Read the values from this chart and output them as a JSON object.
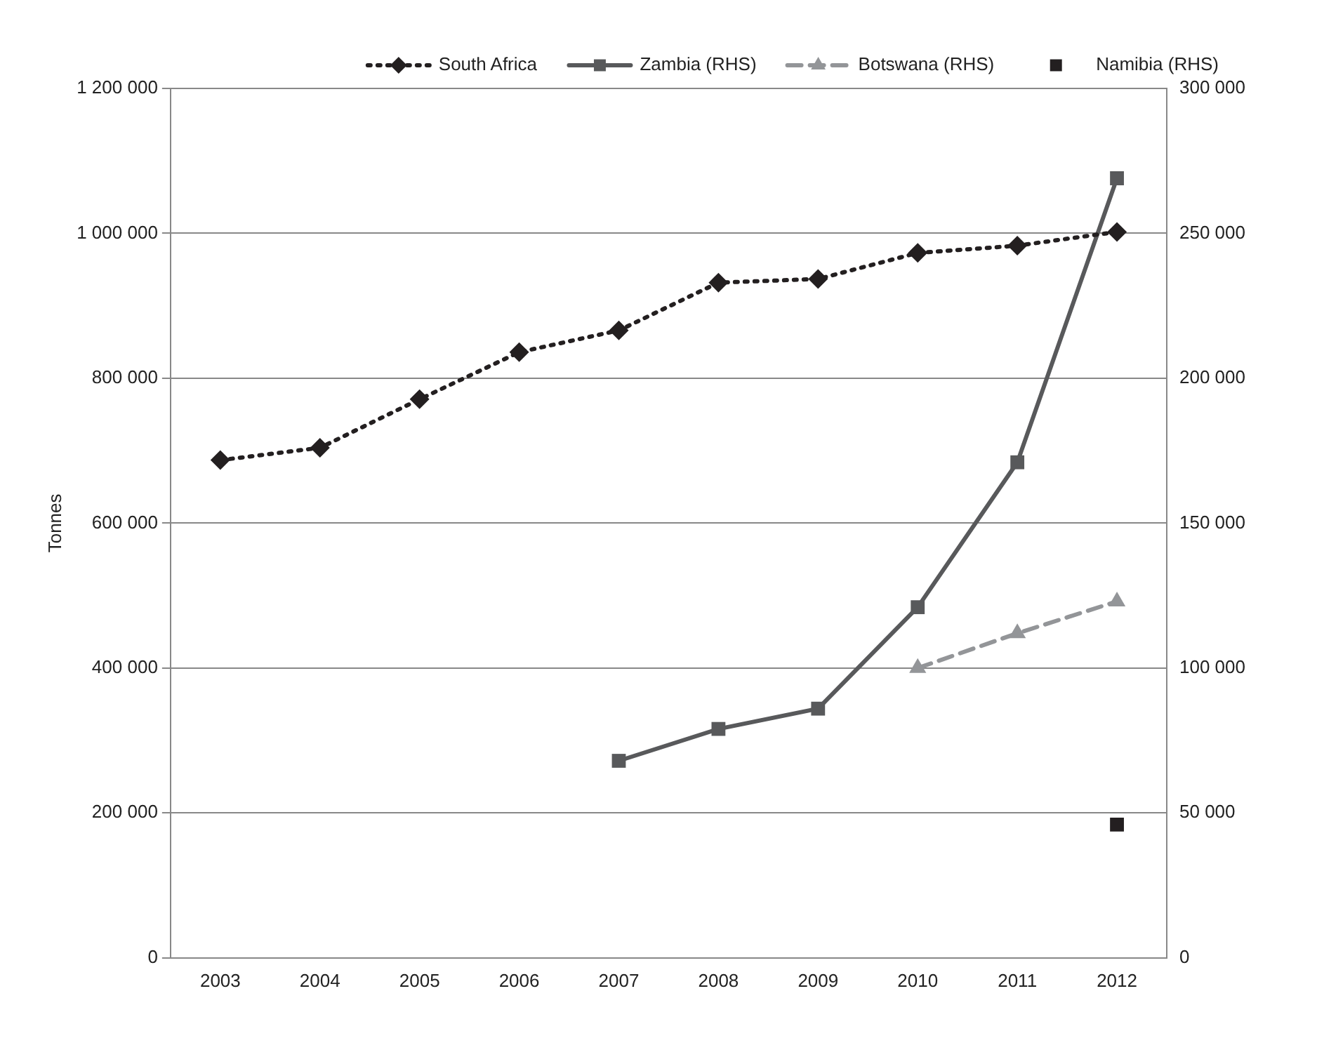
{
  "chart_data": {
    "type": "line",
    "ylabel": "Tonnes",
    "categories": [
      "2003",
      "2004",
      "2005",
      "2006",
      "2007",
      "2008",
      "2009",
      "2010",
      "2011",
      "2012"
    ],
    "series": [
      {
        "name": "South Africa",
        "color": "#231f20",
        "marker": "diamond",
        "line_style": "dotted",
        "values": [
          687000,
          704000,
          771000,
          836000,
          866000,
          932000,
          937000,
          973000,
          983000,
          1002000
        ]
      },
      {
        "name": "Zambia (RHS)",
        "color": "#58595b",
        "marker": "square",
        "line_style": "solid",
        "axis": "y2",
        "values": [
          null,
          null,
          null,
          null,
          68000,
          79000,
          86000,
          121000,
          171000,
          269000
        ]
      },
      {
        "name": "Botswana (RHS)",
        "color": "#939598",
        "marker": "triangle",
        "line_style": "dashed",
        "axis": "y2",
        "values": [
          null,
          null,
          null,
          null,
          null,
          null,
          null,
          100000,
          112000,
          123000
        ]
      },
      {
        "name": "Namibia (RHS)",
        "type": "scatter",
        "color": "#231f20",
        "marker": "square",
        "axis": "y2",
        "values": [
          null,
          null,
          null,
          null,
          null,
          null,
          null,
          null,
          null,
          46000
        ]
      }
    ],
    "ylim": [
      0,
      1200000
    ],
    "yticks": [
      0,
      {
        "value": 200000,
        "label": "200 000"
      },
      {
        "value": 400000,
        "label": "400 000"
      },
      {
        "value": 600000,
        "label": "600 000"
      },
      {
        "value": 800000,
        "label": "800 000"
      },
      {
        "value": 1000000,
        "label": "1 000 000"
      },
      {
        "value": 1200000,
        "label": "1 200 000"
      }
    ],
    "y2lim": [
      0,
      300000
    ],
    "y2ticks": [
      0,
      {
        "value": 50000,
        "label": "50 000"
      },
      {
        "value": 100000,
        "label": "100 000"
      },
      {
        "value": 150000,
        "label": "150 000"
      },
      {
        "value": 200000,
        "label": "200 000"
      },
      {
        "value": 250000,
        "label": "250 000"
      },
      {
        "value": 300000,
        "label": "300 000"
      }
    ],
    "grid": "y",
    "legend": "top right"
  }
}
